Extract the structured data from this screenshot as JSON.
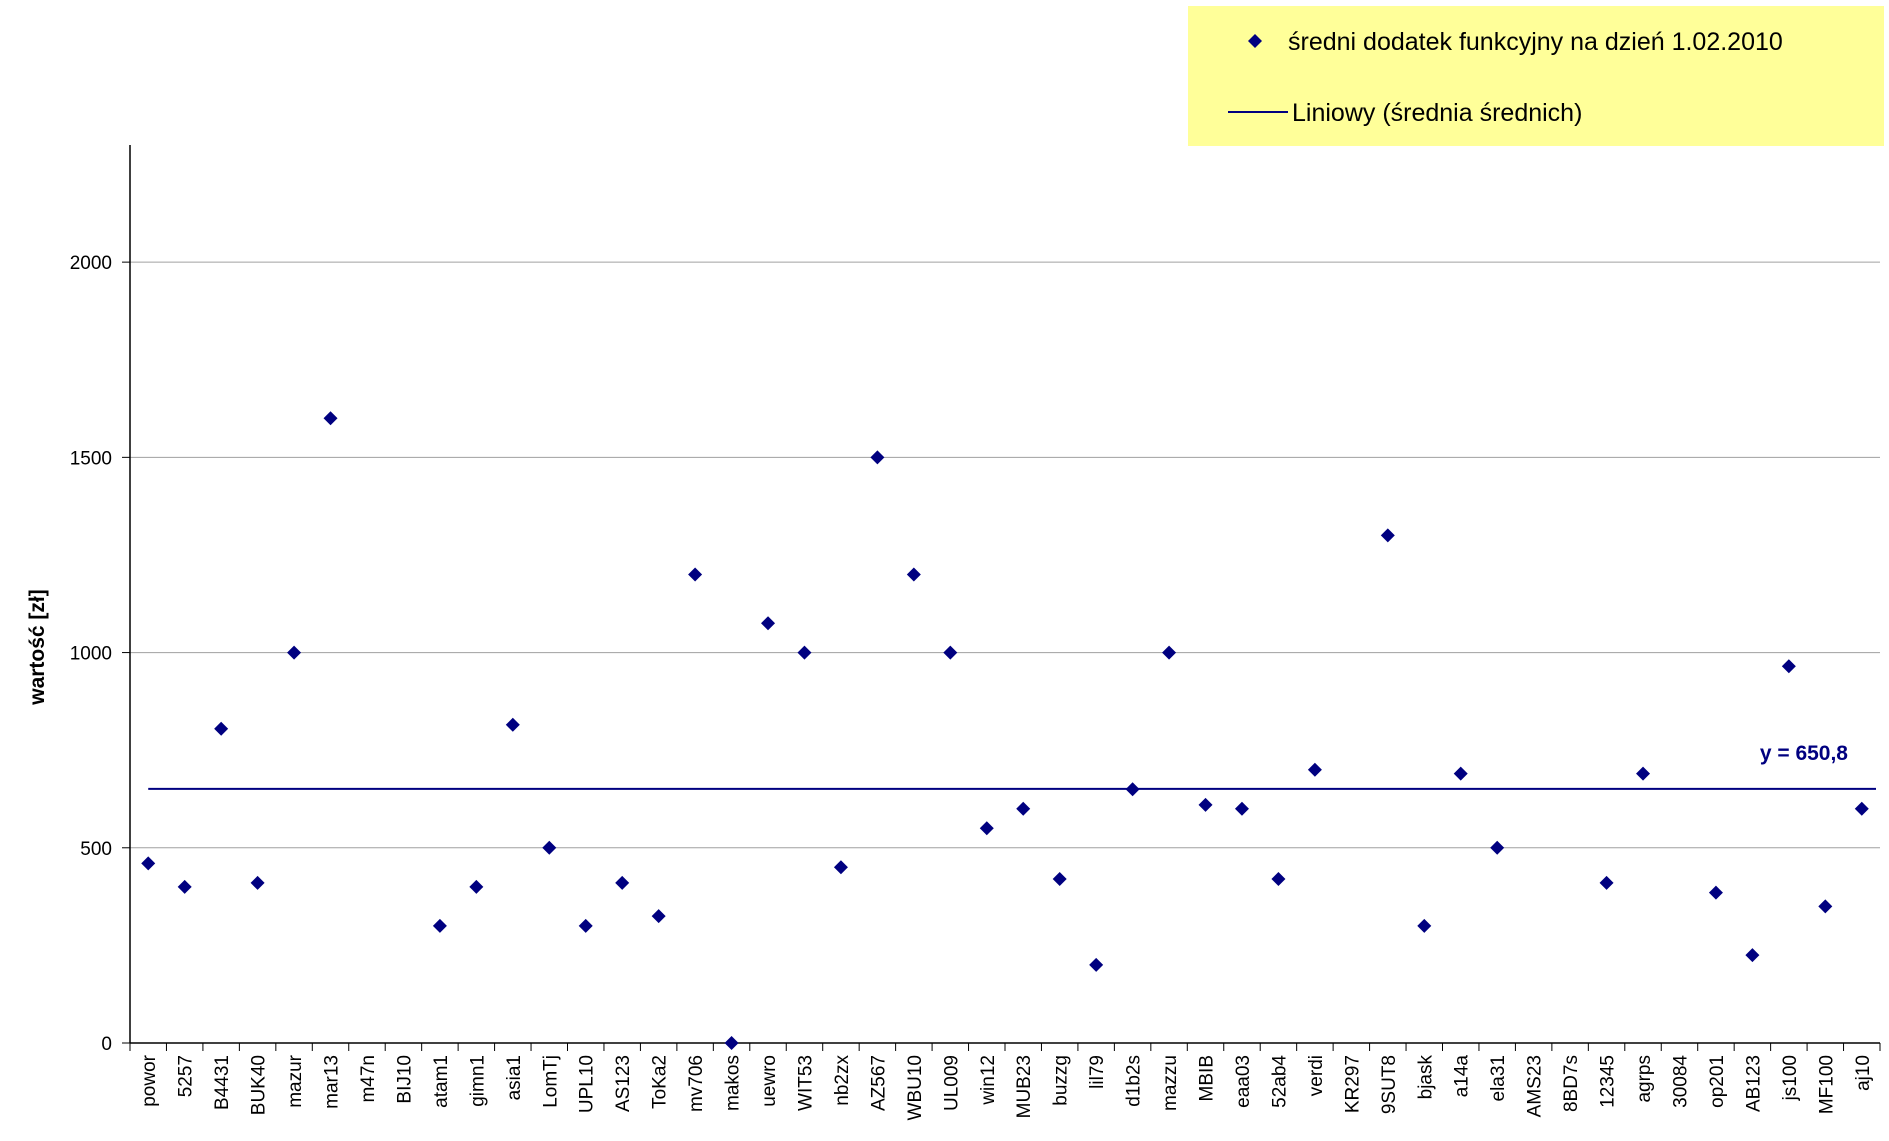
{
  "chart_data": {
    "type": "scatter",
    "title": "",
    "xlabel": "",
    "ylabel": "wartość [zł]",
    "ylim": [
      0,
      2300
    ],
    "yticks": [
      0,
      500,
      1000,
      1500,
      2000
    ],
    "grid": true,
    "legend_position": "top-right",
    "categories": [
      "powor",
      "5257",
      "B4431",
      "BUK40",
      "mazur",
      "mar13",
      "m47n",
      "BIJ10",
      "atam1",
      "gimn1",
      "asia1",
      "LomTj",
      "UPL10",
      "AS123",
      "ToKa2",
      "mv706",
      "makos",
      "uewro",
      "WIT53",
      "nb2zx",
      "AZ567",
      "WBU10",
      "UL009",
      "win12",
      "MUB23",
      "buzzg",
      "lil79",
      "d1b2s",
      "mazzu",
      "MBIB",
      "eaa03",
      "52ab4",
      "verdi",
      "KR297",
      "9SUT8",
      "bjask",
      "a14a",
      "ela31",
      "AMS23",
      "8BD7s",
      "12345",
      "agrps",
      "30084",
      "op201",
      "AB123",
      "js100",
      "MF100",
      "aj10"
    ],
    "series": [
      {
        "name": "średni dodatek funkcyjny na dzień 1.02.2010",
        "marker": "diamond",
        "color": "#000080",
        "values": [
          460,
          400,
          805,
          410,
          1000,
          1600,
          null,
          null,
          300,
          400,
          815,
          500,
          300,
          410,
          325,
          1200,
          0,
          1075,
          1000,
          450,
          1500,
          1200,
          1000,
          550,
          600,
          420,
          200,
          650,
          1000,
          610,
          600,
          420,
          700,
          null,
          1300,
          300,
          690,
          500,
          null,
          null,
          410,
          690,
          null,
          385,
          225,
          965,
          350,
          600
        ]
      },
      {
        "name": "Liniowy (średnia średnich)",
        "type": "line",
        "color": "#000080",
        "constant": 650.8
      }
    ],
    "annotations": [
      {
        "text": "y = 650,8"
      }
    ]
  },
  "legend": {
    "background": "#ffff99",
    "items": [
      {
        "label": "średni dodatek funkcyjny na dzień 1.02.2010"
      },
      {
        "label": "Liniowy (średnia średnich)"
      }
    ]
  }
}
